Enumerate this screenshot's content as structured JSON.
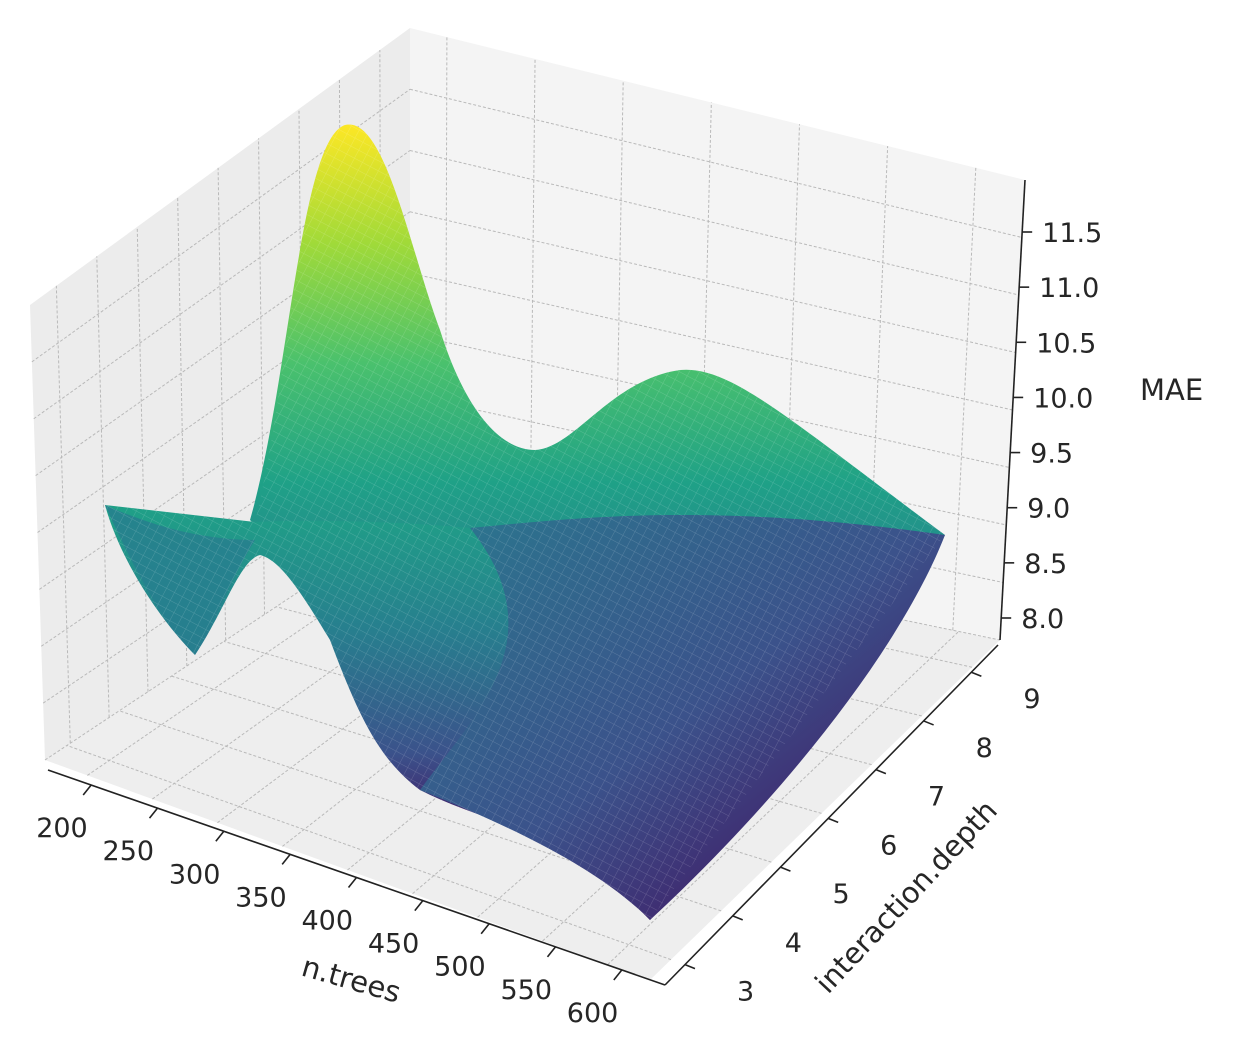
{
  "chart_data": {
    "type": "surface",
    "title": "",
    "colormap": "viridis",
    "x_axis": {
      "label": "n.trees",
      "range": [
        200,
        600
      ],
      "ticks": [
        "200",
        "250",
        "300",
        "350",
        "400",
        "450",
        "500",
        "550",
        "600"
      ]
    },
    "y_axis": {
      "label": "interaction.depth",
      "range": [
        3,
        9
      ],
      "ticks": [
        "3",
        "4",
        "5",
        "6",
        "7",
        "8",
        "9"
      ]
    },
    "z_axis": {
      "label": "MAE",
      "range": [
        8.0,
        11.7
      ],
      "ticks": [
        "8.0",
        "8.5",
        "9.0",
        "9.5",
        "10.0",
        "10.5",
        "11.0",
        "11.5"
      ]
    },
    "grid": true,
    "pane_color": "#f2f2f2",
    "surface_samples": {
      "note_points": [
        {
          "x": 250,
          "y": 9,
          "z": 11.8
        },
        {
          "x": 200,
          "y": 3,
          "z": 9.0
        },
        {
          "x": 250,
          "y": 3,
          "z": 8.0
        },
        {
          "x": 600,
          "y": 9,
          "z": 8.7
        },
        {
          "x": 600,
          "y": 3,
          "z": 7.9
        },
        {
          "x": 400,
          "y": 9,
          "z": 9.3
        },
        {
          "x": 500,
          "y": 9,
          "z": 9.9
        },
        {
          "x": 500,
          "y": 5,
          "z": 7.9
        }
      ]
    }
  }
}
